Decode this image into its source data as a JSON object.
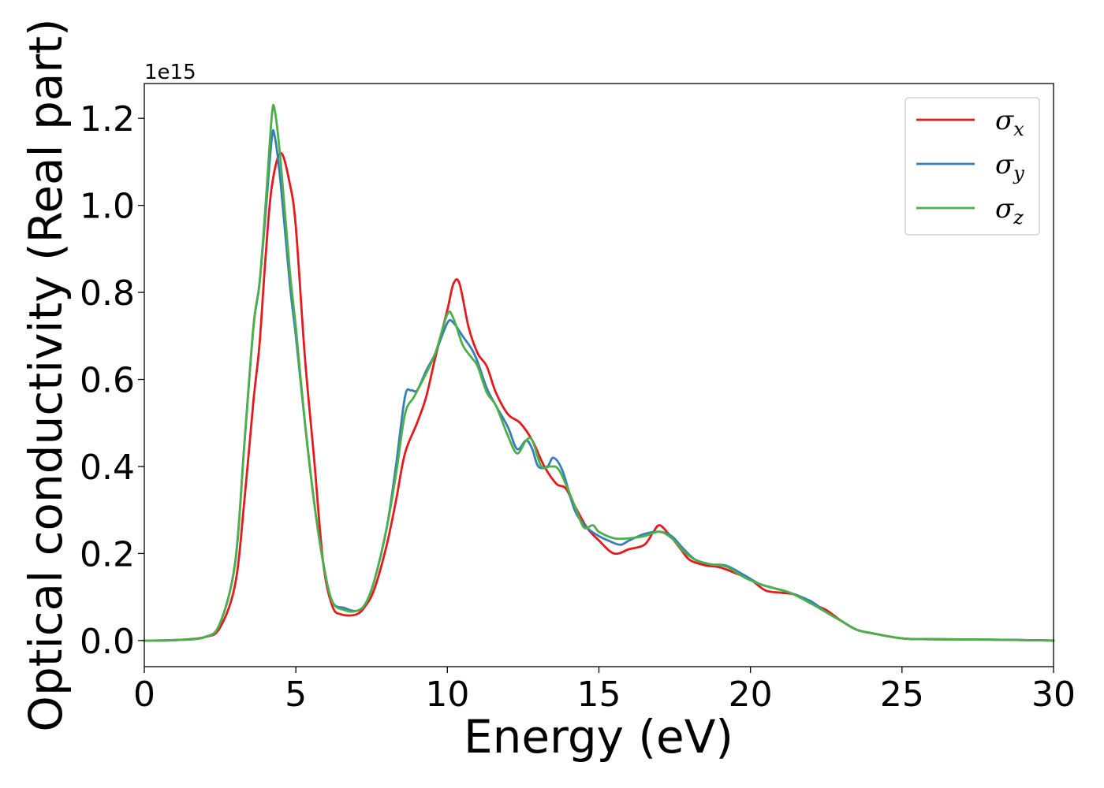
{
  "chart_data": {
    "type": "line",
    "title": "",
    "xlabel": "Energy (eV)",
    "ylabel": "Optical conductivity (Real part)",
    "y_offset_label": "1e15",
    "xlim": [
      0,
      30
    ],
    "ylim": [
      -0.06,
      1.28
    ],
    "xticks": [
      0,
      5,
      10,
      15,
      20,
      25,
      30
    ],
    "xtick_labels": [
      "0",
      "5",
      "10",
      "15",
      "20",
      "25",
      "30"
    ],
    "yticks": [
      0.0,
      0.2,
      0.4,
      0.6,
      0.8,
      1.0,
      1.2
    ],
    "ytick_labels": [
      "0.0",
      "0.2",
      "0.4",
      "0.6",
      "0.8",
      "1.0",
      "1.2"
    ],
    "grid": false,
    "legend_position": "top-right",
    "series": [
      {
        "name": "σx",
        "name_base": "σ",
        "name_sub": "x",
        "color": "#e41a1c",
        "points": [
          [
            0,
            0.0
          ],
          [
            1,
            0.001
          ],
          [
            2,
            0.008
          ],
          [
            2.5,
            0.03
          ],
          [
            3,
            0.13
          ],
          [
            3.3,
            0.32
          ],
          [
            3.6,
            0.55
          ],
          [
            3.8,
            0.68
          ],
          [
            4,
            0.88
          ],
          [
            4.2,
            1.04
          ],
          [
            4.5,
            1.12
          ],
          [
            4.8,
            1.05
          ],
          [
            5,
            0.95
          ],
          [
            5.3,
            0.65
          ],
          [
            5.6,
            0.42
          ],
          [
            5.9,
            0.18
          ],
          [
            6.2,
            0.08
          ],
          [
            6.5,
            0.06
          ],
          [
            7,
            0.06
          ],
          [
            7.3,
            0.08
          ],
          [
            7.6,
            0.12
          ],
          [
            8,
            0.22
          ],
          [
            8.3,
            0.32
          ],
          [
            8.6,
            0.43
          ],
          [
            9,
            0.5
          ],
          [
            9.3,
            0.56
          ],
          [
            9.6,
            0.65
          ],
          [
            10,
            0.76
          ],
          [
            10.2,
            0.82
          ],
          [
            10.4,
            0.82
          ],
          [
            10.7,
            0.72
          ],
          [
            11,
            0.66
          ],
          [
            11.3,
            0.63
          ],
          [
            11.6,
            0.57
          ],
          [
            12,
            0.52
          ],
          [
            12.4,
            0.5
          ],
          [
            12.8,
            0.46
          ],
          [
            13.2,
            0.4
          ],
          [
            13.6,
            0.36
          ],
          [
            13.9,
            0.35
          ],
          [
            14.2,
            0.31
          ],
          [
            14.6,
            0.26
          ],
          [
            15,
            0.23
          ],
          [
            15.5,
            0.2
          ],
          [
            16,
            0.21
          ],
          [
            16.5,
            0.22
          ],
          [
            16.8,
            0.25
          ],
          [
            17,
            0.265
          ],
          [
            17.3,
            0.245
          ],
          [
            17.7,
            0.21
          ],
          [
            18,
            0.185
          ],
          [
            18.5,
            0.173
          ],
          [
            19,
            0.168
          ],
          [
            19.5,
            0.155
          ],
          [
            20,
            0.14
          ],
          [
            20.5,
            0.115
          ],
          [
            21,
            0.11
          ],
          [
            21.5,
            0.105
          ],
          [
            22,
            0.085
          ],
          [
            22.5,
            0.07
          ],
          [
            23,
            0.045
          ],
          [
            23.5,
            0.025
          ],
          [
            24,
            0.017
          ],
          [
            25,
            0.005
          ],
          [
            26,
            0.003
          ],
          [
            28,
            0.002
          ],
          [
            30,
            0.0
          ]
        ]
      },
      {
        "name": "σy",
        "name_base": "σ",
        "name_sub": "y",
        "color": "#377eb8",
        "points": [
          [
            0,
            0.0
          ],
          [
            1,
            0.001
          ],
          [
            2,
            0.008
          ],
          [
            2.5,
            0.04
          ],
          [
            3,
            0.18
          ],
          [
            3.3,
            0.45
          ],
          [
            3.6,
            0.72
          ],
          [
            3.8,
            0.82
          ],
          [
            4,
            0.98
          ],
          [
            4.2,
            1.15
          ],
          [
            4.3,
            1.16
          ],
          [
            4.5,
            1.05
          ],
          [
            4.8,
            0.82
          ],
          [
            5,
            0.7
          ],
          [
            5.3,
            0.5
          ],
          [
            5.6,
            0.32
          ],
          [
            5.9,
            0.18
          ],
          [
            6.2,
            0.09
          ],
          [
            6.6,
            0.075
          ],
          [
            7,
            0.068
          ],
          [
            7.3,
            0.085
          ],
          [
            7.6,
            0.14
          ],
          [
            8,
            0.26
          ],
          [
            8.3,
            0.4
          ],
          [
            8.6,
            0.56
          ],
          [
            8.8,
            0.575
          ],
          [
            9,
            0.575
          ],
          [
            9.3,
            0.62
          ],
          [
            9.6,
            0.66
          ],
          [
            10,
            0.73
          ],
          [
            10.2,
            0.73
          ],
          [
            10.5,
            0.7
          ],
          [
            10.8,
            0.67
          ],
          [
            11,
            0.64
          ],
          [
            11.3,
            0.58
          ],
          [
            11.6,
            0.54
          ],
          [
            12,
            0.49
          ],
          [
            12.3,
            0.44
          ],
          [
            12.6,
            0.46
          ],
          [
            12.8,
            0.44
          ],
          [
            13,
            0.4
          ],
          [
            13.3,
            0.4
          ],
          [
            13.5,
            0.42
          ],
          [
            13.8,
            0.39
          ],
          [
            14.2,
            0.3
          ],
          [
            14.6,
            0.26
          ],
          [
            15,
            0.24
          ],
          [
            15.3,
            0.23
          ],
          [
            15.7,
            0.22
          ],
          [
            16,
            0.23
          ],
          [
            16.5,
            0.245
          ],
          [
            17,
            0.25
          ],
          [
            17.4,
            0.24
          ],
          [
            17.8,
            0.21
          ],
          [
            18.2,
            0.185
          ],
          [
            18.7,
            0.175
          ],
          [
            19.2,
            0.172
          ],
          [
            19.8,
            0.15
          ],
          [
            20.3,
            0.13
          ],
          [
            20.8,
            0.12
          ],
          [
            21.3,
            0.11
          ],
          [
            22,
            0.09
          ],
          [
            22.5,
            0.065
          ],
          [
            23,
            0.045
          ],
          [
            23.5,
            0.025
          ],
          [
            24,
            0.017
          ],
          [
            25,
            0.005
          ],
          [
            26,
            0.003
          ],
          [
            28,
            0.002
          ],
          [
            30,
            0.0
          ]
        ]
      },
      {
        "name": "σz",
        "name_base": "σ",
        "name_sub": "z",
        "color": "#4daf4a",
        "points": [
          [
            0,
            0.0
          ],
          [
            1,
            0.001
          ],
          [
            2,
            0.008
          ],
          [
            2.5,
            0.04
          ],
          [
            3,
            0.18
          ],
          [
            3.3,
            0.45
          ],
          [
            3.6,
            0.72
          ],
          [
            3.8,
            0.82
          ],
          [
            4,
            1.0
          ],
          [
            4.2,
            1.2
          ],
          [
            4.3,
            1.22
          ],
          [
            4.5,
            1.1
          ],
          [
            4.8,
            0.85
          ],
          [
            5,
            0.72
          ],
          [
            5.3,
            0.5
          ],
          [
            5.6,
            0.32
          ],
          [
            5.9,
            0.18
          ],
          [
            6.2,
            0.09
          ],
          [
            6.6,
            0.07
          ],
          [
            7,
            0.068
          ],
          [
            7.3,
            0.085
          ],
          [
            7.6,
            0.14
          ],
          [
            8,
            0.26
          ],
          [
            8.3,
            0.38
          ],
          [
            8.6,
            0.52
          ],
          [
            8.9,
            0.56
          ],
          [
            9.2,
            0.6
          ],
          [
            9.6,
            0.66
          ],
          [
            10,
            0.75
          ],
          [
            10.2,
            0.74
          ],
          [
            10.5,
            0.68
          ],
          [
            10.8,
            0.65
          ],
          [
            11,
            0.63
          ],
          [
            11.3,
            0.57
          ],
          [
            11.6,
            0.54
          ],
          [
            12,
            0.47
          ],
          [
            12.3,
            0.43
          ],
          [
            12.6,
            0.46
          ],
          [
            12.8,
            0.46
          ],
          [
            13.1,
            0.4
          ],
          [
            13.4,
            0.4
          ],
          [
            13.7,
            0.39
          ],
          [
            14.2,
            0.31
          ],
          [
            14.5,
            0.26
          ],
          [
            14.8,
            0.265
          ],
          [
            15,
            0.25
          ],
          [
            15.5,
            0.235
          ],
          [
            16,
            0.235
          ],
          [
            16.5,
            0.24
          ],
          [
            17,
            0.25
          ],
          [
            17.4,
            0.235
          ],
          [
            17.8,
            0.205
          ],
          [
            18.2,
            0.185
          ],
          [
            18.7,
            0.175
          ],
          [
            19.2,
            0.17
          ],
          [
            19.8,
            0.145
          ],
          [
            20.3,
            0.13
          ],
          [
            20.8,
            0.12
          ],
          [
            21.3,
            0.11
          ],
          [
            22,
            0.085
          ],
          [
            22.5,
            0.065
          ],
          [
            23,
            0.045
          ],
          [
            23.5,
            0.025
          ],
          [
            24,
            0.017
          ],
          [
            25,
            0.005
          ],
          [
            26,
            0.003
          ],
          [
            28,
            0.002
          ],
          [
            30,
            0.0
          ]
        ]
      }
    ]
  }
}
